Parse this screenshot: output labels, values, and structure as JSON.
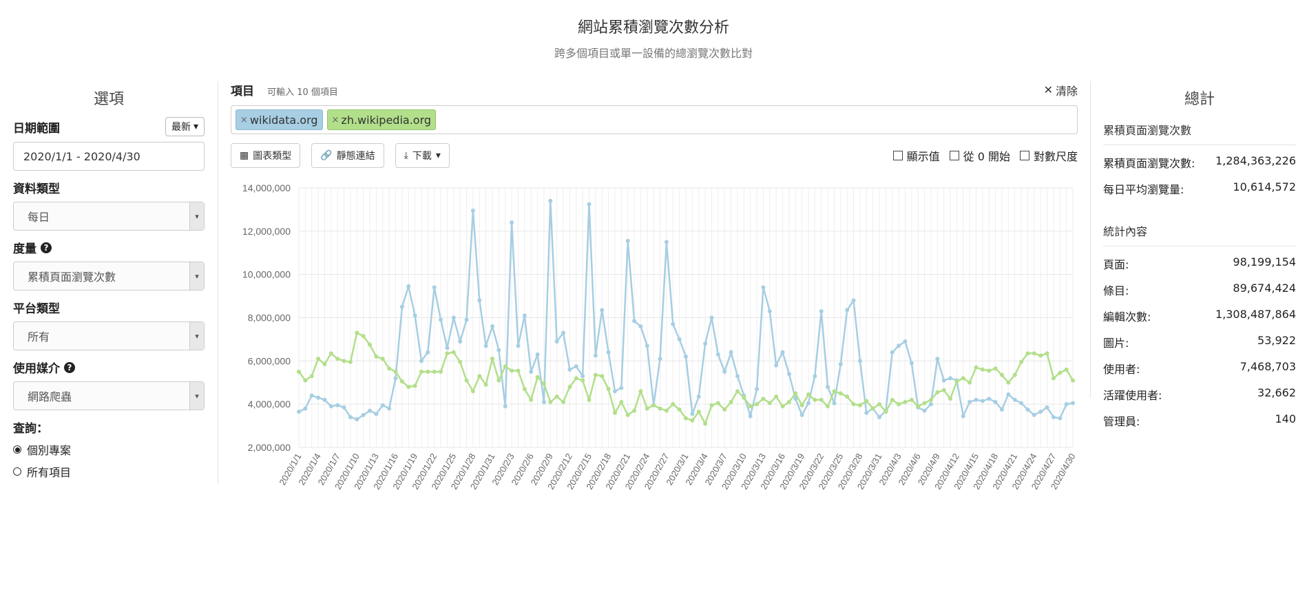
{
  "header": {
    "title": "網站累積瀏覽次數分析",
    "subtitle": "跨多個項目或單一設備的總瀏覽次數比對"
  },
  "options": {
    "heading": "選項",
    "date_range_label": "日期範圍",
    "date_preset": "最新",
    "date_range_value": "2020/1/1 - 2020/4/30",
    "data_type_label": "資料類型",
    "data_type_value": "每日",
    "metric_label": "度量",
    "metric_value": "累積頁面瀏覽次數",
    "platform_label": "平台類型",
    "platform_value": "所有",
    "agent_label": "使用媒介",
    "agent_value": "網路爬蟲",
    "query_label": "查詢：",
    "query_options": [
      "個別專案",
      "所有項目"
    ],
    "query_selected": 0
  },
  "projects": {
    "label": "項目",
    "hint": "可輸入 10 個項目",
    "clear_label": "清除",
    "tags": [
      "wikidata.org",
      "zh.wikipedia.org"
    ]
  },
  "toolbar": {
    "chart_type": "圖表類型",
    "permalink": "靜態連結",
    "download": "下載",
    "show_values": "顯示值",
    "begin_at_zero": "從 0 開始",
    "log_scale": "對數尺度"
  },
  "colors": {
    "series_a": "#a6cee3",
    "series_b": "#b2df8a"
  },
  "totals": {
    "heading": "總計",
    "section1_title": "累積頁面瀏覽次數",
    "section1": [
      {
        "label": "累積頁面瀏覽次數:",
        "value": "1,284,363,226"
      },
      {
        "label": "每日平均瀏覽量:",
        "value": "10,614,572"
      }
    ],
    "section2_title": "統計內容",
    "section2": [
      {
        "label": "頁面:",
        "value": "98,199,154"
      },
      {
        "label": "條目:",
        "value": "89,674,424"
      },
      {
        "label": "編輯次數:",
        "value": "1,308,487,864"
      },
      {
        "label": "圖片:",
        "value": "53,922"
      },
      {
        "label": "使用者:",
        "value": "7,468,703"
      },
      {
        "label": "活躍使用者:",
        "value": "32,662"
      },
      {
        "label": "管理員:",
        "value": "140"
      }
    ]
  },
  "chart_data": {
    "type": "line",
    "start_date": "2020-01-01",
    "days": 121,
    "ylim": [
      2000000,
      14000000
    ],
    "yticks": [
      2000000,
      4000000,
      6000000,
      8000000,
      10000000,
      12000000,
      14000000
    ],
    "xtick_labels": [
      "2020/1/1",
      "2020/1/4",
      "2020/1/7",
      "2020/1/10",
      "2020/1/13",
      "2020/1/16",
      "2020/1/19",
      "2020/1/22",
      "2020/1/25",
      "2020/1/28",
      "2020/1/31",
      "2020/2/3",
      "2020/2/6",
      "2020/2/9",
      "2020/2/12",
      "2020/2/15",
      "2020/2/18",
      "2020/2/21",
      "2020/2/24",
      "2020/2/27",
      "2020/3/1",
      "2020/3/4",
      "2020/3/7",
      "2020/3/10",
      "2020/3/13",
      "2020/3/16",
      "2020/3/19",
      "2020/3/22",
      "2020/3/25",
      "2020/3/28",
      "2020/3/31",
      "2020/4/3",
      "2020/4/6",
      "2020/4/9",
      "2020/4/12",
      "2020/4/15",
      "2020/4/18",
      "2020/4/21",
      "2020/4/24",
      "2020/4/27",
      "2020/4/30"
    ],
    "grid": true,
    "series": [
      {
        "name": "wikidata.org",
        "values": [
          3650000,
          3800000,
          4400000,
          4300000,
          4200000,
          3900000,
          3950000,
          3850000,
          3400000,
          3300000,
          3500000,
          3700000,
          3550000,
          3950000,
          3800000,
          5200000,
          8500000,
          9450000,
          8100000,
          6000000,
          6400000,
          9400000,
          7900000,
          6600000,
          8000000,
          6900000,
          7900000,
          12950000,
          8800000,
          6700000,
          7600000,
          6500000,
          3900000,
          12400000,
          6700000,
          8100000,
          5500000,
          6300000,
          4100000,
          13400000,
          6900000,
          7300000,
          5600000,
          5750000,
          5300000,
          13250000,
          6250000,
          8350000,
          6400000,
          4600000,
          4750000,
          11550000,
          7850000,
          7600000,
          6700000,
          3950000,
          6100000,
          11500000,
          7700000,
          7000000,
          6200000,
          3550000,
          4350000,
          6800000,
          8000000,
          6300000,
          5500000,
          6400000,
          5300000,
          4400000,
          3450000,
          4700000,
          9400000,
          8300000,
          5800000,
          6400000,
          5400000,
          4250000,
          3500000,
          4050000,
          5300000,
          8300000,
          4800000,
          4050000,
          5850000,
          8350000,
          8800000,
          6000000,
          3600000,
          3800000,
          3400000,
          3700000,
          6400000,
          6700000,
          6900000,
          5900000,
          3850000,
          3700000,
          4000000,
          6100000,
          5100000,
          5200000,
          5100000,
          3450000,
          4100000,
          4200000,
          4150000,
          4250000,
          4100000,
          3750000,
          4450000,
          4200000,
          4050000,
          3750000,
          3500000,
          3650000,
          3850000,
          3400000,
          3350000,
          4000000,
          4050000
        ]
      },
      {
        "name": "zh.wikipedia.org",
        "values": [
          5500000,
          5100000,
          5300000,
          6100000,
          5850000,
          6350000,
          6100000,
          6000000,
          5950000,
          7300000,
          7150000,
          6750000,
          6200000,
          6100000,
          5650000,
          5500000,
          5050000,
          4800000,
          4850000,
          5500000,
          5500000,
          5500000,
          5500000,
          6350000,
          6400000,
          5950000,
          5100000,
          4600000,
          5300000,
          4900000,
          6100000,
          5100000,
          5750000,
          5550000,
          5550000,
          4700000,
          4200000,
          5250000,
          4950000,
          4100000,
          4350000,
          4100000,
          4800000,
          5200000,
          5100000,
          4200000,
          5350000,
          5300000,
          4700000,
          3600000,
          4100000,
          3500000,
          3700000,
          4600000,
          3800000,
          3950000,
          3800000,
          3700000,
          4000000,
          3750000,
          3350000,
          3250000,
          3650000,
          3100000,
          3950000,
          4050000,
          3750000,
          4100000,
          4600000,
          4300000,
          3900000,
          4000000,
          4250000,
          4050000,
          4350000,
          3900000,
          4100000,
          4500000,
          3950000,
          4450000,
          4200000,
          4200000,
          3900000,
          4600000,
          4500000,
          4350000,
          4000000,
          3950000,
          4150000,
          3800000,
          4000000,
          3650000,
          4200000,
          4000000,
          4100000,
          4200000,
          3900000,
          4050000,
          4200000,
          4550000,
          4650000,
          4250000,
          5050000,
          5200000,
          5000000,
          5700000,
          5600000,
          5550000,
          5650000,
          5350000,
          5000000,
          5350000,
          5950000,
          6350000,
          6350000,
          6250000,
          6350000,
          5200000,
          5450000,
          5600000,
          5100000
        ]
      }
    ]
  }
}
